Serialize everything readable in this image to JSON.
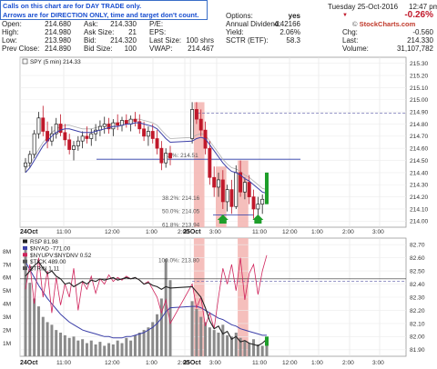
{
  "note": {
    "line1": "Calls on this chart are for DAY TRADE only.",
    "line2": "Arrows are for DIRECTION ONLY, time and target don't count."
  },
  "quote": {
    "date": "Tuesday  25-Oct-2016",
    "time": "12:47 pm",
    "open_label": "Open:",
    "open": "214.680",
    "high_label": "High:",
    "high": "214.980",
    "low_label": "Low:",
    "low": "213.980",
    "prev_label": "Prev Close:",
    "prev": "214.890",
    "ask_label": "Ask:",
    "ask": "214.330",
    "asksize_label": "Ask Size:",
    "asksize": "21",
    "bid_label": "Bid:",
    "bid": "214.320",
    "bidsize_label": "Bid Size:",
    "bidsize": "100",
    "pe_label": "P/E:",
    "pe": "",
    "eps_label": "EPS:",
    "eps": "",
    "lastsize_label": "Last Size:",
    "lastsize": "100 shrs",
    "vwap_label": "VWAP:",
    "vwap": "214.467",
    "options_label": "Options:",
    "options": "yes",
    "div_label": "Annual Dividend:",
    "div": "4.42166",
    "yield_label": "Yield:",
    "yield": "2.06%",
    "sctr_label": "SCTR (ETF):",
    "sctr": "58.3",
    "pct": "-0.26%",
    "chg_label": "Chg:",
    "chg": "-0.560",
    "last_label": "Last:",
    "last": "214.330",
    "vol_label": "Volume:",
    "vol": "31,107,782"
  },
  "brand": {
    "prefix": "© ",
    "name": "StockCharts.com"
  },
  "chart_data": [
    {
      "type": "candlestick",
      "legend": "SPY (5 min) 214.33",
      "y_ticks": [
        "215.30",
        "215.20",
        "215.10",
        "215.00",
        "214.90",
        "214.80",
        "214.70",
        "214.60",
        "214.50",
        "214.40",
        "214.30",
        "214.20",
        "214.10",
        "214.00"
      ],
      "ylim": [
        213.95,
        215.35
      ],
      "x_ticks": [
        "24Oct",
        "11:00",
        "12:00",
        "1:00",
        "2:00",
        "3:00",
        "25Oct",
        "11:00",
        "12:00",
        "1:00",
        "2:00",
        "3:00"
      ],
      "fib_labels": [
        {
          "label": "0.0%: 214.51",
          "value": 214.51
        },
        {
          "label": "38.2%: 214.16",
          "value": 214.16
        },
        {
          "label": "50.0%: 214.05",
          "value": 214.05
        },
        {
          "label": "61.8%: 213.94",
          "value": 213.94
        }
      ],
      "dashed_level": 214.89,
      "colors": {
        "up": "#222222",
        "down": "#c0182a",
        "ma": "#3b3fa8",
        "ma2": "#b0b0b0",
        "highlight": "#f3b4b0",
        "arrow": "#1e9e2a",
        "fib": "#2a3aa8",
        "dashed": "#5a5aa8"
      },
      "candles": [
        [
          214.45,
          214.52,
          214.4,
          214.48
        ],
        [
          214.48,
          214.58,
          214.44,
          214.55
        ],
        [
          214.55,
          214.75,
          214.52,
          214.72
        ],
        [
          214.72,
          214.9,
          214.68,
          214.85
        ],
        [
          214.85,
          214.95,
          214.7,
          214.74
        ],
        [
          214.74,
          214.82,
          214.6,
          214.66
        ],
        [
          214.66,
          214.78,
          214.62,
          214.72
        ],
        [
          214.72,
          214.85,
          214.68,
          214.8
        ],
        [
          214.8,
          214.88,
          214.7,
          214.73
        ],
        [
          214.73,
          214.8,
          214.62,
          214.67
        ],
        [
          214.67,
          214.72,
          214.55,
          214.59
        ],
        [
          214.59,
          214.66,
          214.5,
          214.62
        ],
        [
          214.62,
          214.7,
          214.58,
          214.66
        ],
        [
          214.66,
          214.74,
          214.6,
          214.7
        ],
        [
          214.7,
          214.78,
          214.64,
          214.68
        ],
        [
          214.68,
          214.76,
          214.62,
          214.72
        ],
        [
          214.72,
          214.8,
          214.66,
          214.75
        ],
        [
          214.75,
          214.83,
          214.7,
          214.78
        ],
        [
          214.78,
          214.86,
          214.72,
          214.8
        ],
        [
          214.8,
          214.85,
          214.72,
          214.76
        ],
        [
          214.76,
          214.84,
          214.7,
          214.81
        ],
        [
          214.81,
          214.88,
          214.75,
          214.79
        ],
        [
          214.79,
          214.86,
          214.74,
          214.83
        ],
        [
          214.83,
          214.88,
          214.77,
          214.8
        ],
        [
          214.8,
          214.87,
          214.74,
          214.84
        ],
        [
          214.84,
          214.9,
          214.78,
          214.82
        ],
        [
          214.82,
          214.88,
          214.72,
          214.76
        ],
        [
          214.76,
          214.82,
          214.66,
          214.7
        ],
        [
          214.7,
          214.78,
          214.62,
          214.74
        ],
        [
          214.74,
          214.8,
          214.64,
          214.68
        ],
        [
          214.68,
          214.75,
          214.55,
          214.6
        ],
        [
          214.6,
          214.66,
          214.42,
          214.48
        ],
        [
          214.48,
          214.6,
          214.44,
          214.56
        ],
        [
          214.56,
          214.62,
          214.46,
          214.52
        ],
        [
          214.68,
          214.98,
          214.64,
          214.92
        ],
        [
          214.92,
          214.98,
          214.8,
          214.84
        ],
        [
          214.84,
          214.92,
          214.7,
          214.75
        ],
        [
          214.75,
          214.82,
          214.55,
          214.6
        ],
        [
          214.6,
          214.66,
          214.3,
          214.36
        ],
        [
          214.36,
          214.45,
          214.2,
          214.28
        ],
        [
          214.28,
          214.4,
          214.2,
          214.34
        ],
        [
          214.34,
          214.42,
          214.1,
          214.16
        ],
        [
          214.16,
          214.3,
          214.08,
          214.26
        ],
        [
          214.26,
          214.34,
          214.06,
          214.12
        ],
        [
          214.12,
          214.46,
          214.1,
          214.4
        ],
        [
          214.4,
          214.5,
          214.2,
          214.24
        ],
        [
          214.24,
          214.36,
          214.18,
          214.32
        ],
        [
          214.32,
          214.38,
          214.14,
          214.2
        ],
        [
          214.2,
          214.26,
          214.02,
          214.1
        ],
        [
          214.1,
          214.2,
          213.98,
          214.14
        ],
        [
          214.14,
          214.22,
          214.06,
          214.18
        ],
        [
          214.18,
          214.4,
          214.14,
          214.33
        ]
      ],
      "ma": [
        214.4,
        214.44,
        214.5,
        214.56,
        214.62,
        214.66,
        214.7,
        214.73,
        214.75,
        214.76,
        214.76,
        214.75,
        214.74,
        214.73,
        214.73,
        214.73,
        214.74,
        214.75,
        214.76,
        214.77,
        214.78,
        214.78,
        214.79,
        214.8,
        214.8,
        214.81,
        214.81,
        214.8,
        214.79,
        214.78,
        214.76,
        214.72,
        214.68,
        214.65,
        214.66,
        214.68,
        214.69,
        214.68,
        214.63,
        214.58,
        214.53,
        214.48,
        214.44,
        214.41,
        214.4,
        214.38,
        214.35,
        214.33,
        214.3,
        214.27,
        214.24,
        214.23
      ]
    },
    {
      "type": "line",
      "legends": [
        "RSP 81.98",
        "$NYAD -771.00",
        "$NYUPV:$NYDNV 0.52",
        "$TICK 489.00",
        "$TRIN 1.11"
      ],
      "y_ticks_left": [
        "8M",
        "7M",
        "6M",
        "5M",
        "4M",
        "3M",
        "2M",
        "1M"
      ],
      "y_ticks_right": [
        "82.70",
        "82.60",
        "82.50",
        "82.40",
        "82.30",
        "82.20",
        "82.10",
        "82.00",
        "81.90"
      ],
      "ylim_right": [
        81.85,
        82.75
      ],
      "ylim_left": [
        0,
        9
      ],
      "fib_label": {
        "label": "100.0%: 213.80",
        "value": 82.56
      },
      "hline_solid": 82.44,
      "hline_dashed": 82.42,
      "colors": {
        "rsp": "#222222",
        "ratio": "#d0245c",
        "vol": "#8a8a8a",
        "ma": "#3b3fa8",
        "highlight": "#f3b4b0"
      },
      "rsp": [
        82.46,
        82.5,
        82.54,
        82.57,
        82.52,
        82.48,
        82.5,
        82.46,
        82.44,
        82.4,
        82.41,
        82.38,
        82.4,
        82.42,
        82.4,
        82.43,
        82.42,
        82.44,
        82.43,
        82.44,
        82.45,
        82.43,
        82.44,
        82.45,
        82.44,
        82.45,
        82.43,
        82.4,
        82.41,
        82.39,
        82.38,
        82.36,
        82.38,
        82.37,
        82.38,
        82.34,
        82.3,
        82.22,
        82.12,
        82.06,
        82.08,
        82.02,
        82.04,
        81.98,
        82.0,
        81.96,
        81.97,
        81.95,
        81.94,
        81.93,
        81.95,
        81.98
      ],
      "ratio": [
        82.36,
        82.55,
        82.25,
        82.6,
        82.3,
        82.5,
        82.18,
        82.45,
        82.24,
        82.4,
        82.3,
        82.52,
        82.2,
        82.42,
        82.36,
        82.46,
        82.33,
        82.44,
        82.4,
        82.47,
        82.42,
        82.45,
        82.43,
        82.46,
        82.44,
        82.45,
        82.43,
        82.4,
        82.42,
        82.36,
        82.3,
        82.18,
        82.28,
        82.1,
        82.4,
        82.22,
        82.3,
        82.08,
        82.18,
        82.06,
        82.3,
        82.52,
        82.4,
        82.55,
        82.35,
        82.6,
        82.28,
        82.48,
        82.55,
        82.32,
        82.5,
        82.62
      ],
      "volume_m": [
        8.2,
        5.6,
        4.4,
        3.8,
        3.0,
        2.6,
        2.4,
        2.0,
        1.8,
        1.6,
        1.4,
        1.5,
        1.2,
        1.3,
        1.0,
        1.2,
        0.9,
        1.1,
        0.8,
        1.0,
        0.9,
        1.2,
        1.0,
        1.4,
        1.2,
        1.6,
        1.8,
        2.0,
        2.2,
        2.6,
        3.2,
        4.4,
        7.4,
        5.8,
        4.2,
        3.6,
        3.0,
        2.6,
        2.2,
        2.0,
        1.8,
        2.4,
        1.6,
        1.5,
        1.8,
        1.4,
        1.2,
        1.0,
        1.3,
        0.9,
        0.8,
        1.0
      ],
      "ma_m": [
        7.2,
        6.6,
        6.0,
        5.4,
        4.9,
        4.4,
        4.0,
        3.6,
        3.2,
        2.9,
        2.6,
        2.4,
        2.2,
        2.0,
        1.9,
        1.8,
        1.7,
        1.6,
        1.5,
        1.5,
        1.4,
        1.4,
        1.4,
        1.5,
        1.5,
        1.6,
        1.7,
        1.8,
        2.0,
        2.2,
        2.5,
        2.9,
        3.4,
        3.7,
        3.8,
        3.8,
        3.7,
        3.5,
        3.3,
        3.1,
        2.9,
        2.8,
        2.6,
        2.4,
        2.3,
        2.1,
        2.0,
        1.9,
        1.8,
        1.7,
        1.6,
        1.6
      ]
    }
  ]
}
